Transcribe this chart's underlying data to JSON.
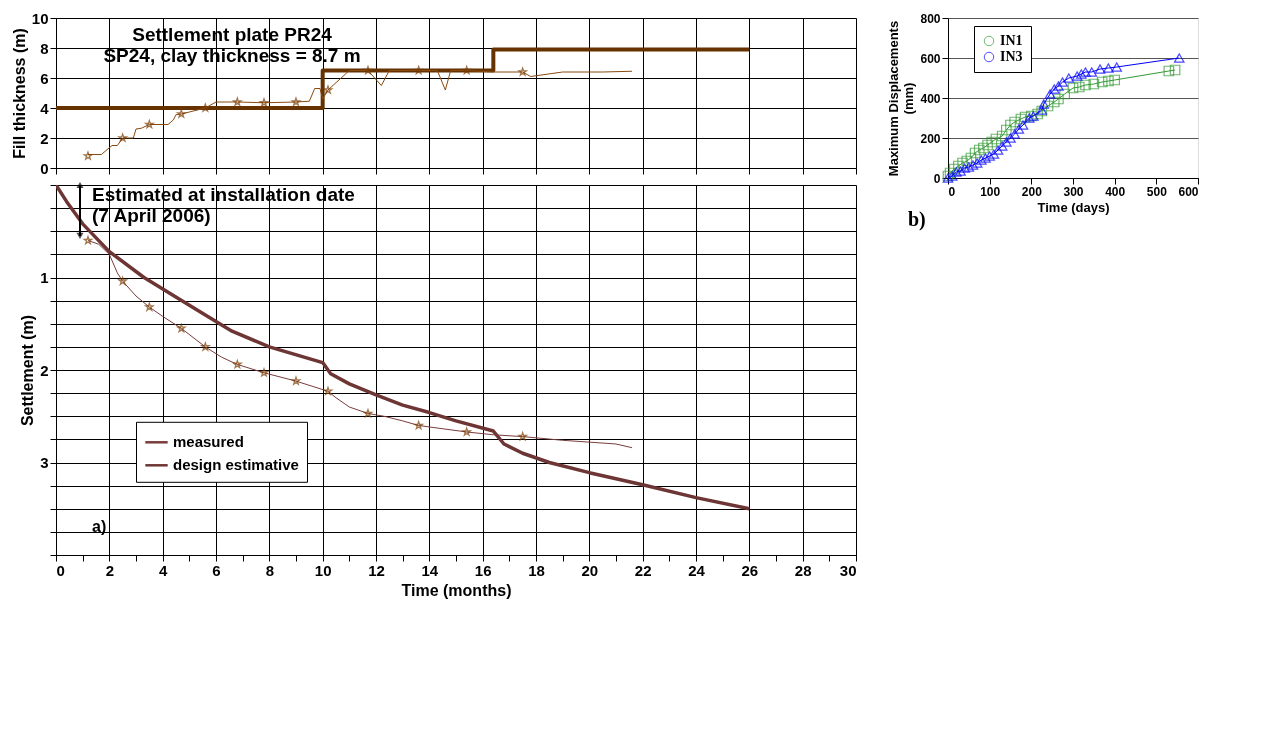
{
  "chart_data": [
    {
      "type": "line",
      "title": "Settlement plate PR24\nSP24, clay thickness = 8.7 m",
      "ylabel": "Fill thickness (m)",
      "xlim": [
        0,
        30
      ],
      "xticks": [
        {
          "value": 0,
          "label": null
        },
        {
          "value": 2,
          "label": null
        },
        {
          "value": 4,
          "label": null
        },
        {
          "value": 6,
          "label": null
        },
        {
          "value": 8,
          "label": null
        },
        {
          "value": 10,
          "label": null
        },
        {
          "value": 12,
          "label": null
        },
        {
          "value": 14,
          "label": null
        },
        {
          "value": 16,
          "label": null
        },
        {
          "value": 18,
          "label": null
        },
        {
          "value": 20,
          "label": null
        },
        {
          "value": 22,
          "label": null
        },
        {
          "value": 24,
          "label": null
        },
        {
          "value": 26,
          "label": null
        },
        {
          "value": 28,
          "label": null
        },
        {
          "value": 30,
          "label": null
        }
      ],
      "ylim": [
        0,
        10
      ],
      "yticks": [
        0,
        2,
        4,
        6,
        8,
        10
      ],
      "grid": true,
      "tick_labels": "y",
      "series": [
        {
          "type": "line",
          "color": "#8a4a10",
          "x": [
            1.2,
            1.7,
            2.1,
            2.3,
            2.5,
            2.9,
            3.0,
            3.2,
            3.5,
            4.2,
            4.4,
            4.5,
            4.7,
            5.6,
            6.0,
            6.8,
            7.8,
            9.0,
            9.5,
            9.7,
            9.9,
            10.0,
            10.2,
            11.0,
            11.7,
            12.2,
            12.5,
            13.6,
            14.3,
            14.6,
            14.8,
            15.4,
            16.4,
            17.5,
            17.8,
            19.0,
            20.5,
            21.6
          ],
          "values": [
            0.9,
            0.9,
            1.5,
            1.5,
            2.0,
            2.0,
            2.6,
            2.65,
            2.9,
            2.9,
            3.2,
            3.55,
            3.6,
            4.0,
            4.4,
            4.4,
            4.35,
            4.4,
            4.45,
            5.3,
            5.3,
            4.6,
            5.2,
            6.5,
            6.5,
            5.5,
            6.5,
            6.5,
            6.5,
            5.2,
            6.5,
            6.5,
            6.4,
            6.4,
            6.1,
            6.4,
            6.4,
            6.45
          ]
        },
        {
          "type": "scatter",
          "marker": "star",
          "color": "#7a3c00",
          "x": [
            1.2,
            2.5,
            3.5,
            4.7,
            5.6,
            6.8,
            7.8,
            9.0,
            10.2,
            11.7,
            13.6,
            15.4,
            17.5
          ],
          "values": [
            0.8,
            2.0,
            2.9,
            3.6,
            4.0,
            4.4,
            4.35,
            4.4,
            5.2,
            6.5,
            6.5,
            6.5,
            6.4
          ]
        },
        {
          "type": "line",
          "color": "#663300",
          "x": [
            0,
            10,
            10,
            16.4,
            16.4,
            26
          ],
          "values": [
            4,
            4,
            6.5,
            6.5,
            7.9,
            7.9
          ]
        }
      ]
    },
    {
      "type": "line",
      "ylabel": "Settlement (m)",
      "xlabel": "Time (months)",
      "xlim": [
        0,
        30
      ],
      "xticks": [
        0,
        {
          "value": 1,
          "label": null
        },
        2,
        {
          "value": 3,
          "label": null
        },
        4,
        {
          "value": 5,
          "label": null
        },
        6,
        {
          "value": 7,
          "label": null
        },
        8,
        {
          "value": 9,
          "label": null
        },
        10,
        {
          "value": 11,
          "label": null
        },
        12,
        {
          "value": 13,
          "label": null
        },
        14,
        {
          "value": 15,
          "label": null
        },
        16,
        {
          "value": 17,
          "label": null
        },
        18,
        {
          "value": 19,
          "label": null
        },
        20,
        {
          "value": 21,
          "label": null
        },
        22,
        {
          "value": 23,
          "label": null
        },
        24,
        {
          "value": 25,
          "label": null
        },
        26,
        {
          "value": 27,
          "label": null
        },
        28,
        {
          "value": 29,
          "label": null
        },
        30
      ],
      "ylim": [
        4,
        0
      ],
      "yticks": [
        {
          "value": 0,
          "label": null
        },
        {
          "value": 0.25,
          "label": null
        },
        {
          "value": 0.5,
          "label": null
        },
        {
          "value": 0.75,
          "label": null
        },
        1,
        {
          "value": 1.25,
          "label": null
        },
        {
          "value": 1.5,
          "label": null
        },
        {
          "value": 1.75,
          "label": null
        },
        2,
        {
          "value": 2.25,
          "label": null
        },
        {
          "value": 2.5,
          "label": null
        },
        {
          "value": 2.75,
          "label": null
        },
        3,
        {
          "value": 3.25,
          "label": null
        },
        {
          "value": 3.5,
          "label": null
        },
        {
          "value": 3.75,
          "label": null
        },
        {
          "value": 4,
          "label": null
        }
      ],
      "grid": true,
      "legend": "bottom left",
      "annotations": [
        {
          "text": "Estimated at installation date\n(7 April 2006)",
          "x": 0.9,
          "y": 0.55
        },
        "a)"
      ],
      "series": [
        {
          "type": "line",
          "name": "measured",
          "color": "#7a3c3c",
          "x": [
            1.2,
            1.6,
            2.0,
            2.3,
            2.5,
            3.0,
            3.5,
            4.0,
            4.7,
            5.6,
            6.2,
            6.8,
            7.8,
            9.0,
            10.2,
            10.5,
            11.0,
            11.7,
            12.3,
            13.0,
            13.6,
            15.4,
            16.4,
            17.5,
            19.0,
            20.0,
            21.0,
            21.6
          ],
          "values": [
            0.6,
            0.64,
            0.75,
            0.95,
            1.04,
            1.2,
            1.32,
            1.42,
            1.55,
            1.75,
            1.86,
            1.94,
            2.03,
            2.12,
            2.23,
            2.3,
            2.4,
            2.47,
            2.5,
            2.55,
            2.6,
            2.67,
            2.7,
            2.72,
            2.76,
            2.78,
            2.8,
            2.84
          ]
        },
        {
          "type": "scatter",
          "marker": "star",
          "color": "#7a3c00",
          "x": [
            1.2,
            2.5,
            3.5,
            4.7,
            5.6,
            6.8,
            7.8,
            9.0,
            10.2,
            11.7,
            13.6,
            15.4,
            17.5
          ],
          "values": [
            0.6,
            1.04,
            1.32,
            1.55,
            1.75,
            1.94,
            2.03,
            2.12,
            2.23,
            2.47,
            2.6,
            2.67,
            2.72
          ]
        },
        {
          "type": "line",
          "name": "design estimative",
          "color": "#6e3535",
          "x": [
            0,
            0.4,
            1,
            2,
            3.3,
            5,
            6.6,
            8,
            10,
            10.3,
            11,
            12,
            13,
            14,
            15,
            16.4,
            16.8,
            17.5,
            18.5,
            20,
            22,
            24,
            26
          ],
          "values": [
            0,
            0.18,
            0.42,
            0.72,
            1.0,
            1.3,
            1.58,
            1.75,
            1.92,
            2.04,
            2.15,
            2.27,
            2.38,
            2.46,
            2.55,
            2.66,
            2.8,
            2.9,
            3.0,
            3.11,
            3.24,
            3.38,
            3.5
          ]
        }
      ]
    },
    {
      "type": "line",
      "xlabel": "Time (days)",
      "ylabel": "Maximum Displacements\n(mm)",
      "xlim": [
        0,
        600
      ],
      "xticks": [
        0,
        100,
        200,
        300,
        400,
        500,
        600
      ],
      "ylim": [
        0,
        800
      ],
      "yticks": [
        0,
        200,
        400,
        600,
        800
      ],
      "grid": "y",
      "legend": "top left",
      "annotations": [
        "b)"
      ],
      "series": [
        {
          "name": "IN1",
          "color": "#339933",
          "marker": "square",
          "x": [
            0,
            5,
            15,
            25,
            35,
            45,
            55,
            65,
            75,
            85,
            95,
            105,
            115,
            130,
            140,
            150,
            160,
            175,
            185,
            200,
            215,
            225,
            240,
            255,
            265,
            280,
            300,
            315,
            330,
            350,
            370,
            385,
            400,
            530,
            545
          ],
          "values": [
            10,
            25,
            45,
            60,
            75,
            85,
            100,
            125,
            140,
            150,
            165,
            180,
            195,
            210,
            240,
            265,
            280,
            295,
            305,
            310,
            320,
            335,
            360,
            380,
            395,
            420,
            450,
            455,
            465,
            470,
            480,
            485,
            490,
            535,
            540
          ]
        },
        {
          "name": "IN3",
          "color": "#0000ff",
          "marker": "triangle",
          "x": [
            0,
            10,
            20,
            30,
            40,
            50,
            60,
            70,
            80,
            90,
            100,
            110,
            120,
            130,
            140,
            150,
            160,
            170,
            180,
            195,
            205,
            225,
            230,
            245,
            255,
            265,
            275,
            290,
            310,
            320,
            330,
            345,
            365,
            385,
            405,
            555
          ],
          "values": [
            0,
            10,
            30,
            35,
            50,
            55,
            65,
            75,
            90,
            100,
            110,
            120,
            140,
            160,
            180,
            200,
            220,
            245,
            265,
            300,
            310,
            340,
            370,
            420,
            445,
            460,
            480,
            500,
            510,
            520,
            530,
            530,
            545,
            550,
            555,
            600
          ]
        }
      ]
    }
  ]
}
